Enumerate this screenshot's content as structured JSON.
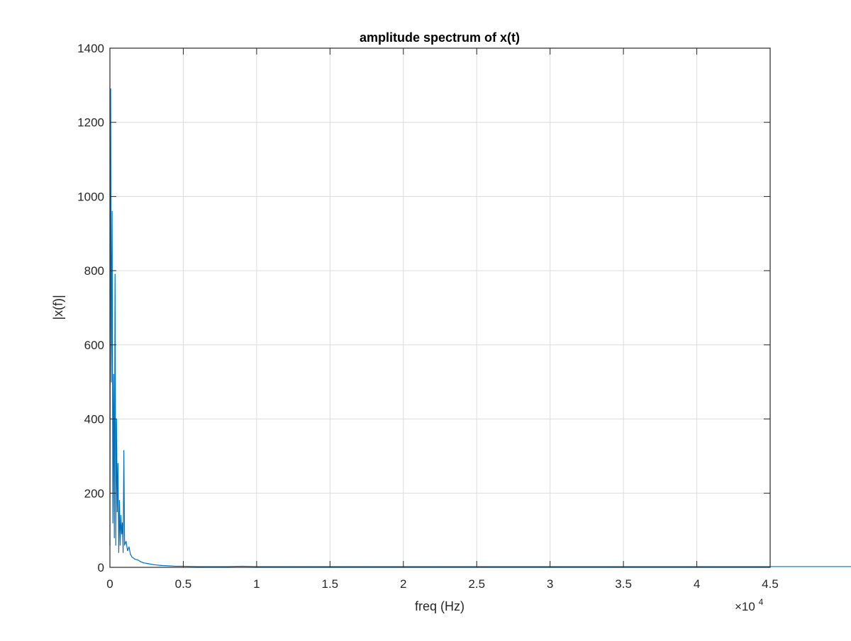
{
  "chart_data": {
    "type": "line",
    "title": "amplitude spectrum of x(t)",
    "xlabel": "freq (Hz)",
    "ylabel": "|x(f)|",
    "x_exponent_label": {
      "base": "×10",
      "exp": "4"
    },
    "xlim": [
      0,
      45000
    ],
    "ylim": [
      0,
      1400
    ],
    "x_ticks": [
      0,
      5000,
      10000,
      15000,
      20000,
      25000,
      30000,
      35000,
      40000,
      45000
    ],
    "x_tick_labels": [
      "0",
      "0.5",
      "1",
      "1.5",
      "2",
      "2.5",
      "3",
      "3.5",
      "4",
      "4.5"
    ],
    "y_ticks": [
      0,
      200,
      400,
      600,
      800,
      1000,
      1200,
      1400
    ],
    "y_tick_labels": [
      "0",
      "200",
      "400",
      "600",
      "800",
      "1000",
      "1200",
      "1400"
    ],
    "grid": true,
    "legend": "none",
    "colors": {
      "series": "#0072bd",
      "grid": "#dcdcdc",
      "axes": "#262626"
    },
    "series": [
      {
        "mirror_about": 44100,
        "x": [
          0,
          50,
          100,
          150,
          200,
          250,
          300,
          350,
          400,
          450,
          500,
          550,
          600,
          650,
          700,
          750,
          800,
          850,
          900,
          950,
          1000,
          1100,
          1200,
          1300,
          1400,
          1500,
          1700,
          1900,
          2100,
          2300,
          2600,
          3000,
          3500,
          4000,
          4500,
          5000,
          6000,
          7000,
          8000,
          9000,
          10000,
          12000,
          14000,
          16000,
          18000,
          20000,
          22050
        ],
        "values": [
          60,
          1290,
          500,
          960,
          120,
          520,
          80,
          790,
          60,
          400,
          150,
          280,
          40,
          180,
          60,
          140,
          90,
          120,
          40,
          315,
          60,
          70,
          45,
          55,
          35,
          28,
          22,
          20,
          15,
          12,
          10,
          7,
          5,
          4,
          3,
          3,
          2,
          2,
          2,
          3,
          2,
          2,
          2,
          2,
          2,
          2,
          2
        ]
      }
    ]
  }
}
